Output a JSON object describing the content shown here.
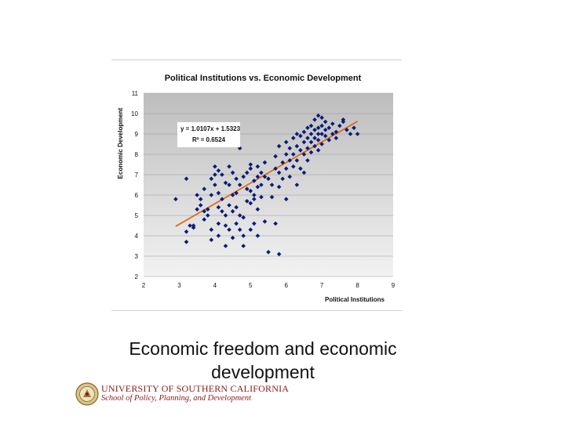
{
  "slide": {
    "caption_line1": "Economic freedom and economic",
    "caption_line2": "development"
  },
  "logo": {
    "org_line1": "UNIVERSITY OF SOUTHERN CALIFORNIA",
    "org_line2": "School of Policy, Planning, and Development"
  },
  "colors": {
    "marker": "#0b1b7a",
    "trendline": "#e26a1c",
    "plot_area_top": "#bdbdbd",
    "plot_area_bottom": "#f2f2f2",
    "logo_text": "#8a1a1a"
  },
  "chart_data": {
    "type": "scatter",
    "title": "Political Institutions vs. Economic Development",
    "xlabel": "Political Institutions",
    "ylabel": "Economic Development",
    "xlim": [
      2,
      9
    ],
    "ylim": [
      2,
      11
    ],
    "xticks": [
      2,
      3,
      4,
      5,
      6,
      7,
      8,
      9
    ],
    "yticks": [
      2,
      3,
      4,
      5,
      6,
      7,
      8,
      9,
      10,
      11
    ],
    "grid": "horizontal",
    "legend": "none",
    "trendline": {
      "slope": 1.0107,
      "intercept": 1.5323,
      "x_range": [
        2.9,
        8.0
      ],
      "equation_label": "y = 1.0107x + 1.5323",
      "r2_label": "R² = 0.6524"
    },
    "series": [
      {
        "points": [
          [
            2.9,
            5.8
          ],
          [
            3.2,
            6.8
          ],
          [
            3.2,
            3.7
          ],
          [
            3.2,
            4.2
          ],
          [
            3.3,
            4.5
          ],
          [
            3.4,
            4.5
          ],
          [
            3.4,
            4.4
          ],
          [
            3.5,
            6.0
          ],
          [
            3.6,
            5.5
          ],
          [
            3.6,
            5.8
          ],
          [
            3.7,
            4.8
          ],
          [
            3.7,
            5.2
          ],
          [
            3.7,
            6.3
          ],
          [
            3.8,
            5.0
          ],
          [
            3.8,
            5.3
          ],
          [
            3.9,
            6.8
          ],
          [
            3.9,
            6.0
          ],
          [
            3.9,
            4.3
          ],
          [
            3.9,
            3.8
          ],
          [
            4.0,
            7.4
          ],
          [
            4.0,
            7.0
          ],
          [
            4.0,
            6.5
          ],
          [
            4.1,
            7.2
          ],
          [
            4.1,
            6.1
          ],
          [
            4.1,
            5.4
          ],
          [
            4.1,
            4.6
          ],
          [
            4.1,
            4.0
          ],
          [
            4.2,
            7.0
          ],
          [
            4.2,
            5.8
          ],
          [
            4.2,
            5.2
          ],
          [
            4.3,
            5.0
          ],
          [
            4.3,
            4.5
          ],
          [
            4.3,
            3.5
          ],
          [
            4.4,
            7.4
          ],
          [
            4.4,
            6.5
          ],
          [
            4.4,
            5.5
          ],
          [
            4.4,
            4.3
          ],
          [
            4.5,
            7.1
          ],
          [
            4.5,
            6.0
          ],
          [
            4.5,
            5.2
          ],
          [
            4.5,
            3.9
          ],
          [
            4.6,
            6.8
          ],
          [
            4.6,
            6.1
          ],
          [
            4.6,
            5.4
          ],
          [
            4.6,
            4.6
          ],
          [
            4.7,
            8.3
          ],
          [
            4.7,
            6.5
          ],
          [
            4.7,
            5.0
          ],
          [
            4.7,
            4.3
          ],
          [
            4.8,
            6.9
          ],
          [
            4.8,
            4.9
          ],
          [
            4.8,
            4.0
          ],
          [
            4.8,
            3.5
          ],
          [
            4.9,
            7.1
          ],
          [
            4.9,
            6.3
          ],
          [
            4.9,
            5.7
          ],
          [
            5.0,
            7.5
          ],
          [
            5.0,
            6.2
          ],
          [
            5.0,
            5.6
          ],
          [
            5.0,
            4.3
          ],
          [
            5.1,
            6.7
          ],
          [
            5.1,
            6.0
          ],
          [
            5.1,
            5.8
          ],
          [
            5.1,
            4.6
          ],
          [
            5.2,
            7.4
          ],
          [
            5.2,
            6.9
          ],
          [
            5.2,
            6.4
          ],
          [
            5.2,
            5.3
          ],
          [
            5.2,
            4.0
          ],
          [
            5.3,
            7.1
          ],
          [
            5.3,
            6.5
          ],
          [
            5.3,
            5.9
          ],
          [
            5.4,
            7.6
          ],
          [
            5.4,
            6.9
          ],
          [
            5.4,
            4.7
          ],
          [
            5.5,
            6.8
          ],
          [
            5.5,
            3.2
          ],
          [
            5.6,
            6.5
          ],
          [
            5.6,
            5.9
          ],
          [
            5.7,
            7.9
          ],
          [
            5.7,
            7.3
          ],
          [
            5.7,
            4.6
          ],
          [
            5.8,
            8.4
          ],
          [
            5.8,
            7.1
          ],
          [
            5.8,
            6.4
          ],
          [
            5.8,
            3.1
          ],
          [
            5.9,
            7.6
          ],
          [
            5.9,
            6.8
          ],
          [
            6.0,
            8.6
          ],
          [
            6.0,
            8.0
          ],
          [
            6.0,
            7.3
          ],
          [
            6.0,
            5.8
          ],
          [
            6.1,
            8.3
          ],
          [
            6.1,
            7.7
          ],
          [
            6.1,
            6.9
          ],
          [
            6.2,
            8.8
          ],
          [
            6.2,
            8.0
          ],
          [
            6.2,
            7.4
          ],
          [
            6.3,
            9.0
          ],
          [
            6.3,
            8.4
          ],
          [
            6.3,
            7.7
          ],
          [
            6.3,
            6.5
          ],
          [
            6.4,
            8.9
          ],
          [
            6.4,
            8.2
          ],
          [
            6.4,
            7.3
          ],
          [
            6.5,
            9.1
          ],
          [
            6.5,
            8.6
          ],
          [
            6.5,
            8.0
          ],
          [
            6.5,
            7.1
          ],
          [
            6.6,
            9.3
          ],
          [
            6.6,
            8.8
          ],
          [
            6.6,
            8.3
          ],
          [
            6.6,
            7.7
          ],
          [
            6.7,
            9.4
          ],
          [
            6.7,
            9.0
          ],
          [
            6.7,
            8.6
          ],
          [
            6.7,
            8.1
          ],
          [
            6.8,
            9.7
          ],
          [
            6.8,
            9.2
          ],
          [
            6.8,
            8.8
          ],
          [
            6.8,
            8.4
          ],
          [
            6.9,
            9.3
          ],
          [
            6.9,
            9.0
          ],
          [
            6.9,
            8.7
          ],
          [
            7.0,
            9.8
          ],
          [
            7.0,
            9.4
          ],
          [
            7.0,
            9.0
          ],
          [
            7.0,
            8.5
          ],
          [
            7.1,
            9.6
          ],
          [
            7.1,
            9.2
          ],
          [
            7.1,
            8.9
          ],
          [
            7.2,
            9.3
          ],
          [
            7.2,
            8.7
          ],
          [
            7.3,
            9.5
          ],
          [
            7.3,
            9.0
          ],
          [
            7.4,
            9.1
          ],
          [
            7.4,
            8.8
          ],
          [
            7.5,
            9.4
          ],
          [
            7.6,
            9.6
          ],
          [
            7.7,
            9.2
          ],
          [
            7.8,
            9.0
          ],
          [
            7.9,
            9.3
          ],
          [
            8.0,
            9.0
          ],
          [
            6.9,
            9.9
          ],
          [
            7.6,
            9.7
          ],
          [
            5.0,
            7.3
          ],
          [
            4.3,
            6.6
          ],
          [
            3.5,
            5.3
          ],
          [
            6.9,
            8.2
          ]
        ]
      }
    ]
  }
}
